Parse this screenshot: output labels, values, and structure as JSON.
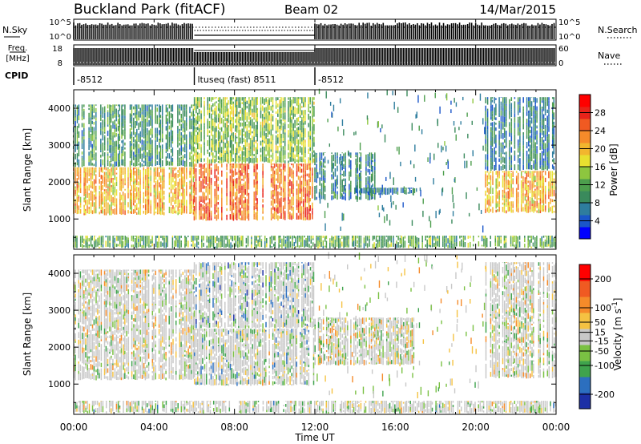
{
  "header": {
    "title": "Buckland Park (fitACF)",
    "beam": "Beam 02",
    "date": "14/Mar/2015"
  },
  "panels": {
    "nsky_label": "N.Sky",
    "nsearch_label": "N.Search",
    "freq_label_line1": "Freq.",
    "freq_label_line2": "[MHz]",
    "nave_label": "Nave",
    "cpid_label": "CPID",
    "noise_tick_top": "10^5",
    "noise_tick_bottom": "10^0",
    "freq_tick_top": "18",
    "freq_tick_bottom": "8",
    "nave_tick_top": "60",
    "nave_tick_bottom": "0",
    "cpid_segments": [
      {
        "label": "-8512",
        "start_hour": 0,
        "end_hour": 6.0
      },
      {
        "label": "ltuseq (fast) 8511",
        "start_hour": 6.0,
        "end_hour": 12.0
      },
      {
        "label": "-8512",
        "start_hour": 12.0,
        "end_hour": 24.0
      }
    ]
  },
  "colors": {
    "power_colorbar": [
      "#0000ff",
      "#1a56c9",
      "#2e7d9e",
      "#3a8a5c",
      "#4d9e4d",
      "#8dc63f",
      "#e8e030",
      "#f2b62e",
      "#f58b2a",
      "#f05a22",
      "#e8231a",
      "#ff0000"
    ],
    "velocity_colorbar": [
      "#1c2fa6",
      "#2c6fbf",
      "#3fa34d",
      "#7ac143",
      "#c8c8c8",
      "#f5c242",
      "#f58b2a",
      "#f05a22",
      "#ff0000"
    ]
  },
  "chart_data": [
    {
      "type": "heatmap",
      "name": "power",
      "xlabel": "",
      "ylabel": "Slant Range [km]",
      "xlim": [
        0,
        24
      ],
      "ylim": [
        180,
        4500
      ],
      "yticks": [
        1000,
        2000,
        3000,
        4000
      ],
      "colorbar_label": "Power [dB]",
      "colorbar_ticks": [
        "4",
        "8",
        "12",
        "16",
        "20",
        "24",
        "28"
      ],
      "colorbar_range": [
        0,
        32
      ],
      "echo_regions": [
        {
          "hours": [
            0,
            6
          ],
          "ranges_km": [
            1100,
            2400
          ],
          "typical_value": 20
        },
        {
          "hours": [
            0,
            6
          ],
          "ranges_km": [
            2400,
            4100
          ],
          "typical_value": 10
        },
        {
          "hours": [
            6,
            12
          ],
          "ranges_km": [
            950,
            2500
          ],
          "typical_value": 24
        },
        {
          "hours": [
            6,
            12
          ],
          "ranges_km": [
            2500,
            4300
          ],
          "typical_value": 14
        },
        {
          "hours": [
            12,
            15
          ],
          "ranges_km": [
            1500,
            2800
          ],
          "typical_value": 8
        },
        {
          "hours": [
            14,
            17
          ],
          "ranges_km": [
            1650,
            1850
          ],
          "typical_value": 8
        },
        {
          "hours": [
            20.5,
            24
          ],
          "ranges_km": [
            1150,
            2300
          ],
          "typical_value": 20
        },
        {
          "hours": [
            20.5,
            24
          ],
          "ranges_km": [
            2300,
            4300
          ],
          "typical_value": 8
        },
        {
          "hours": [
            0,
            24
          ],
          "ranges_km": [
            200,
            550
          ],
          "typical_value": 12
        }
      ]
    },
    {
      "type": "heatmap",
      "name": "velocity",
      "xlabel": "Time UT",
      "ylabel": "Slant Range [km]",
      "xlim": [
        0,
        24
      ],
      "xticks": [
        "00:00",
        "04:00",
        "08:00",
        "12:00",
        "16:00",
        "20:00",
        "00:00"
      ],
      "ylim": [
        180,
        4500
      ],
      "yticks": [
        1000,
        2000,
        3000,
        4000
      ],
      "colorbar_label": "Velocity [m s^-1]",
      "colorbar_ticks": [
        "-200",
        "-100",
        "-50",
        "-15",
        "15",
        "50",
        "100",
        "200"
      ],
      "colorbar_range": [
        -250,
        250
      ],
      "echo_regions": [
        {
          "hours": [
            0,
            6
          ],
          "ranges_km": [
            1100,
            4100
          ],
          "typical_value": 0
        },
        {
          "hours": [
            6,
            12
          ],
          "ranges_km": [
            950,
            2500
          ],
          "typical_value": -40
        },
        {
          "hours": [
            6,
            12
          ],
          "ranges_km": [
            2500,
            4300
          ],
          "typical_value": -80
        },
        {
          "hours": [
            12,
            17
          ],
          "ranges_km": [
            1500,
            2800
          ],
          "typical_value": 0
        },
        {
          "hours": [
            20.5,
            24
          ],
          "ranges_km": [
            1150,
            4300
          ],
          "typical_value": 0
        },
        {
          "hours": [
            0,
            24
          ],
          "ranges_km": [
            200,
            550
          ],
          "typical_value": -20
        }
      ]
    }
  ]
}
